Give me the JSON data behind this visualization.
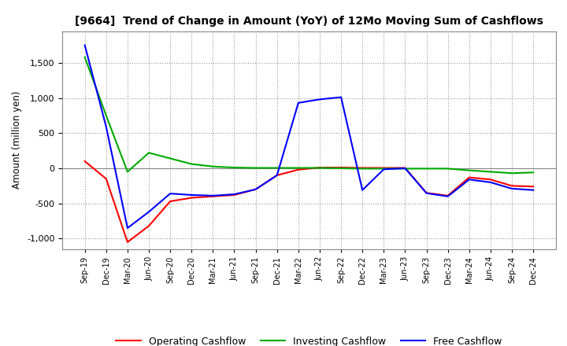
{
  "title": "[9664]  Trend of Change in Amount (YoY) of 12Mo Moving Sum of Cashflows",
  "ylabel": "Amount (million yen)",
  "x_labels": [
    "Sep-19",
    "Dec-19",
    "Mar-20",
    "Jun-20",
    "Sep-20",
    "Dec-20",
    "Mar-21",
    "Jun-21",
    "Sep-21",
    "Dec-21",
    "Mar-22",
    "Jun-22",
    "Sep-22",
    "Dec-22",
    "Mar-23",
    "Jun-23",
    "Sep-23",
    "Dec-23",
    "Mar-24",
    "Jun-24",
    "Sep-24",
    "Dec-24"
  ],
  "operating": [
    100,
    -150,
    -1050,
    -820,
    -470,
    -420,
    -400,
    -380,
    -300,
    -100,
    -20,
    10,
    10,
    5,
    5,
    5,
    -350,
    -390,
    -130,
    -160,
    -250,
    -260
  ],
  "investing": [
    1580,
    750,
    -50,
    220,
    140,
    60,
    25,
    10,
    5,
    5,
    5,
    5,
    0,
    -5,
    -5,
    -5,
    -5,
    -5,
    -30,
    -50,
    -70,
    -60
  ],
  "free": [
    1750,
    590,
    -850,
    -620,
    -360,
    -380,
    -390,
    -370,
    -300,
    -100,
    930,
    980,
    1010,
    -310,
    -15,
    0,
    -355,
    -400,
    -160,
    -200,
    -290,
    -310
  ],
  "ylim": [
    -1150,
    1950
  ],
  "yticks": [
    -1000,
    -500,
    0,
    500,
    1000,
    1500
  ],
  "grid_color": "#999999",
  "line_color_operating": "#ff0000",
  "line_color_investing": "#00aa00",
  "line_color_free": "#0000ff",
  "background_color": "#ffffff",
  "legend_labels": [
    "Operating Cashflow",
    "Investing Cashflow",
    "Free Cashflow"
  ]
}
